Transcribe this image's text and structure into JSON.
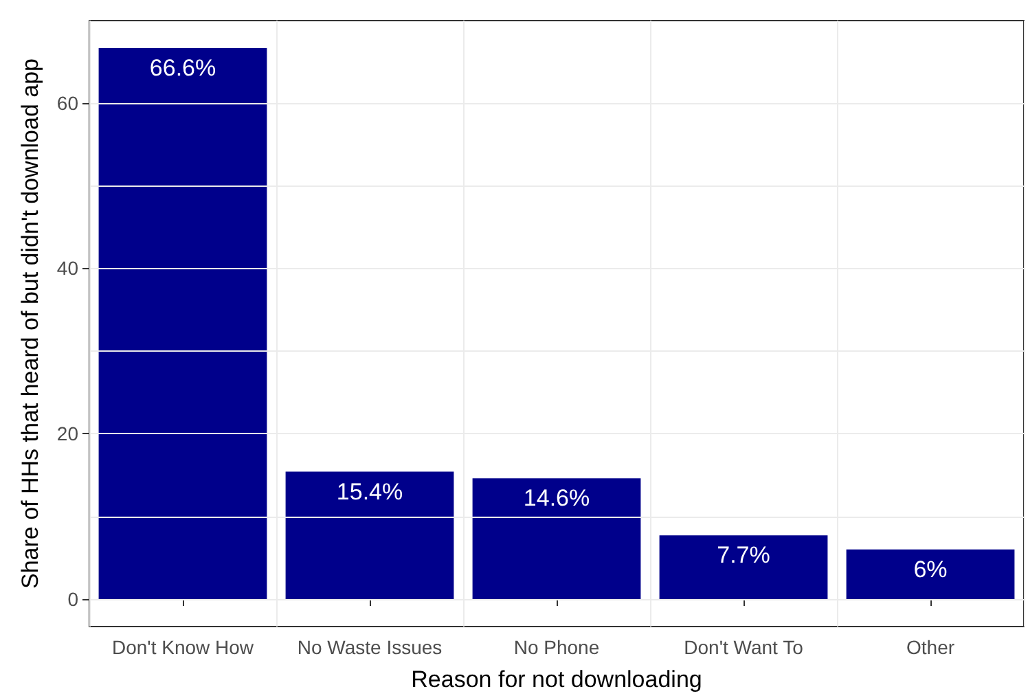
{
  "chart_data": {
    "type": "bar",
    "xlabel": "Reason for not downloading",
    "ylabel": "Share of HHs that heard of but didn't download app",
    "categories": [
      "Don't Know How",
      "No Waste Issues",
      "No Phone",
      "Don't Want To",
      "Other"
    ],
    "values": [
      66.6,
      15.4,
      14.6,
      7.7,
      6
    ],
    "value_labels": [
      "66.6%",
      "15.4%",
      "14.6%",
      "7.7%",
      "6%"
    ],
    "color": "#00008b",
    "ylim": [
      -3.33,
      69.93
    ],
    "yticks": [
      0,
      {
        "value": 10,
        "label": null
      },
      20,
      {
        "value": 30,
        "label": null
      },
      40,
      {
        "value": 50,
        "label": null
      },
      60
    ],
    "grid": true
  }
}
